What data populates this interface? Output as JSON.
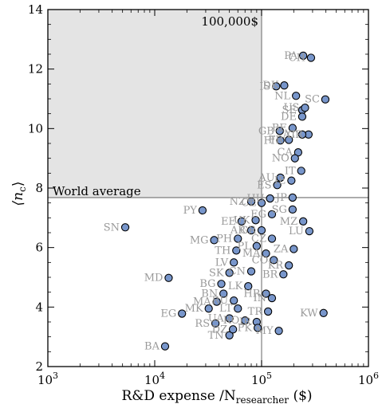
{
  "chart_data": {
    "type": "scatter",
    "x_scale": "log",
    "xlim": [
      1000,
      1000000
    ],
    "ylim": [
      2,
      14
    ],
    "xlabel": "R&D expense /N",
    "xlabel_sub": "researcher",
    "xlabel_unit": " ($)",
    "ylabel": "⟨n",
    "ylabel_sub": "c",
    "ylabel_end": "⟩",
    "x_tick_labels": [
      {
        "base": "10",
        "exp": "3",
        "value": 1000
      },
      {
        "base": "10",
        "exp": "4",
        "value": 10000
      },
      {
        "base": "10",
        "exp": "5",
        "value": 100000
      },
      {
        "base": "10",
        "exp": "6",
        "value": 1000000
      }
    ],
    "y_ticks": [
      2,
      4,
      6,
      8,
      10,
      12,
      14
    ],
    "y_tick_labels": [
      "2",
      "4",
      "6",
      "8",
      "10",
      "12",
      "14"
    ],
    "reference_lines": {
      "x": 100000,
      "y": 7.68
    },
    "shaded_region": {
      "x": [
        1000,
        100000
      ],
      "y": [
        7.68,
        14
      ]
    },
    "annotations": {
      "x_line": "100,000$",
      "y_line": "World average"
    },
    "marker_fill": "#7896cb",
    "marker_edge": "#000000",
    "shade_fill": "#e4e4e4",
    "points": [
      {
        "label": "PA",
        "x": 245000,
        "y": 12.45
      },
      {
        "label": "CH",
        "x": 290000,
        "y": 12.38
      },
      {
        "label": "IS",
        "x": 137000,
        "y": 11.42
      },
      {
        "label": "DK",
        "x": 163000,
        "y": 11.45
      },
      {
        "label": "NL",
        "x": 210000,
        "y": 11.1
      },
      {
        "label": "SC",
        "x": 395000,
        "y": 10.98
      },
      {
        "label": "SE",
        "x": 240000,
        "y": 10.62
      },
      {
        "label": "US",
        "x": 255000,
        "y": 10.7
      },
      {
        "label": "DE",
        "x": 240000,
        "y": 10.4
      },
      {
        "label": "BE",
        "x": 195000,
        "y": 10.02
      },
      {
        "label": "GB",
        "x": 148000,
        "y": 9.92
      },
      {
        "label": "CR",
        "x": 275000,
        "y": 9.8
      },
      {
        "label": "FI",
        "x": 150000,
        "y": 9.6
      },
      {
        "label": "FR",
        "x": 180000,
        "y": 9.62
      },
      {
        "label": "AT",
        "x": 240000,
        "y": 9.8
      },
      {
        "label": "CA",
        "x": 220000,
        "y": 9.2
      },
      {
        "label": "NO",
        "x": 205000,
        "y": 9.0
      },
      {
        "label": "AU",
        "x": 150000,
        "y": 8.35
      },
      {
        "label": "IT",
        "x": 235000,
        "y": 8.58
      },
      {
        "label": "ES",
        "x": 140000,
        "y": 8.1
      },
      {
        "label": "IE",
        "x": 190000,
        "y": 8.25
      },
      {
        "label": "NZ",
        "x": 80000,
        "y": 7.55
      },
      {
        "label": "HU",
        "x": 120000,
        "y": 7.65
      },
      {
        "label": "JP",
        "x": 195000,
        "y": 7.68
      },
      {
        "label": "PY",
        "x": 28000,
        "y": 7.25
      },
      {
        "label": "CL",
        "x": 100000,
        "y": 7.5
      },
      {
        "label": "SG",
        "x": 195000,
        "y": 7.28
      },
      {
        "label": "EG",
        "x": 125000,
        "y": 7.12
      },
      {
        "label": "SN",
        "x": 5300,
        "y": 6.68
      },
      {
        "label": "EE",
        "x": 65000,
        "y": 6.88
      },
      {
        "label": "UK",
        "x": 88000,
        "y": 6.92
      },
      {
        "label": "MZ",
        "x": 245000,
        "y": 6.88
      },
      {
        "label": "AR",
        "x": 80000,
        "y": 6.58
      },
      {
        "label": "GR",
        "x": 100000,
        "y": 6.58
      },
      {
        "label": "LU",
        "x": 280000,
        "y": 6.55
      },
      {
        "label": "PH",
        "x": 60000,
        "y": 6.3
      },
      {
        "label": "MG",
        "x": 36000,
        "y": 6.25
      },
      {
        "label": "CZ",
        "x": 125000,
        "y": 6.3
      },
      {
        "label": "ZA",
        "x": 200000,
        "y": 5.95
      },
      {
        "label": "TH",
        "x": 58000,
        "y": 5.9
      },
      {
        "label": "PL",
        "x": 90000,
        "y": 6.05
      },
      {
        "label": "LV",
        "x": 55000,
        "y": 5.5
      },
      {
        "label": "MA",
        "x": 110000,
        "y": 5.8
      },
      {
        "label": "CO",
        "x": 130000,
        "y": 5.58
      },
      {
        "label": "KR",
        "x": 180000,
        "y": 5.4
      },
      {
        "label": "SK",
        "x": 50000,
        "y": 5.15
      },
      {
        "label": "CN",
        "x": 80000,
        "y": 5.2
      },
      {
        "label": "BR",
        "x": 160000,
        "y": 5.1
      },
      {
        "label": "MD",
        "x": 13500,
        "y": 4.98
      },
      {
        "label": "BG",
        "x": 42000,
        "y": 4.78
      },
      {
        "label": "LK",
        "x": 75000,
        "y": 4.7
      },
      {
        "label": "HR",
        "x": 110000,
        "y": 4.45
      },
      {
        "label": "BN",
        "x": 44000,
        "y": 4.45
      },
      {
        "label": "IN",
        "x": 125000,
        "y": 4.3
      },
      {
        "label": "MA",
        "x": 38000,
        "y": 4.18
      },
      {
        "label": "RU",
        "x": 55000,
        "y": 4.22
      },
      {
        "label": "MK",
        "x": 32000,
        "y": 3.95
      },
      {
        "label": "LT",
        "x": 60000,
        "y": 3.95
      },
      {
        "label": "TR",
        "x": 115000,
        "y": 3.85
      },
      {
        "label": "KW",
        "x": 380000,
        "y": 3.8
      },
      {
        "label": "EG",
        "x": 18000,
        "y": 3.78
      },
      {
        "label": "UA",
        "x": 50000,
        "y": 3.62
      },
      {
        "label": "RO",
        "x": 70000,
        "y": 3.55
      },
      {
        "label": "IR",
        "x": 90000,
        "y": 3.5
      },
      {
        "label": "RS",
        "x": 37000,
        "y": 3.45
      },
      {
        "label": "MY",
        "x": 145000,
        "y": 3.2
      },
      {
        "label": "TN",
        "x": 50000,
        "y": 3.05
      },
      {
        "label": "PK",
        "x": 92000,
        "y": 3.3
      },
      {
        "label": "DZ",
        "x": 54000,
        "y": 3.25
      },
      {
        "label": "BA",
        "x": 12500,
        "y": 2.68
      }
    ]
  }
}
